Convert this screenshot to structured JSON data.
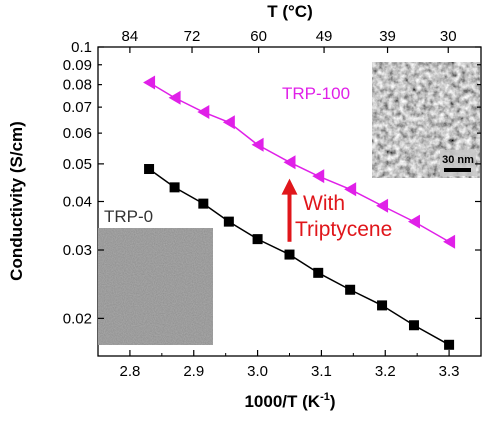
{
  "chart_data": {
    "type": "scatter",
    "xlabel": "1000/T (K",
    "xlabel_sup": "-1",
    "xlabel_close": ")",
    "x2label": "T (°C)",
    "ylabel": "Conductivity (S/cm)",
    "xlim": [
      2.75,
      3.35
    ],
    "ylim": [
      0.016,
      0.1
    ],
    "yscale": "log",
    "grid": false,
    "x_ticks": [
      "2.8",
      "2.9",
      "3.0",
      "3.1",
      "3.2",
      "3.3"
    ],
    "y_ticks": [
      "0.1",
      "0.09",
      "0.08",
      "0.07",
      "0.06",
      "0.05",
      "0.04",
      "0.03",
      "0.02"
    ],
    "x2_ticks": [
      "84",
      "72",
      "60",
      "49",
      "39",
      "30"
    ],
    "series": [
      {
        "name": "TRP-100",
        "color": "#e020e8",
        "marker": "left-triangle",
        "x": [
          2.83,
          2.87,
          2.915,
          2.955,
          3.0,
          3.05,
          3.095,
          3.145,
          3.195,
          3.245,
          3.3
        ],
        "y": [
          0.081,
          0.074,
          0.068,
          0.064,
          0.056,
          0.0505,
          0.0465,
          0.043,
          0.039,
          0.0355,
          0.0315
        ]
      },
      {
        "name": "TRP-0",
        "color": "#000000",
        "marker": "square",
        "x": [
          2.83,
          2.87,
          2.915,
          2.955,
          3.0,
          3.05,
          3.095,
          3.145,
          3.195,
          3.245,
          3.3
        ],
        "y": [
          0.0485,
          0.0435,
          0.0395,
          0.0355,
          0.032,
          0.0292,
          0.0262,
          0.0237,
          0.0216,
          0.0192,
          0.0171
        ]
      }
    ],
    "annotation": {
      "text_line1": "With",
      "text_line2": "Triptycene",
      "color": "#e0161b",
      "arrow_x": 3.05,
      "arrow_from_y": 0.0315,
      "arrow_to_y": 0.045
    },
    "inset_scale_bar": "30 nm"
  }
}
